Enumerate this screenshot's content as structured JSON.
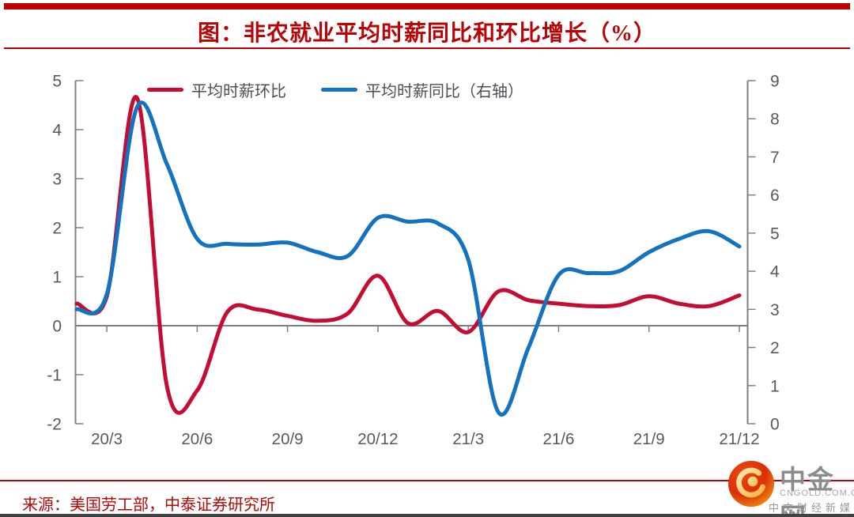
{
  "title": "图：非农就业平均时薪同比和环比增长（%）",
  "source": "来源：美国劳工部，中泰证券研究所",
  "watermark": {
    "brand": "中金网",
    "domain": "CNGOLD.COM.CN",
    "tagline": "中文财经新媒体"
  },
  "colors": {
    "accent_red": "#C00000",
    "axis_line": "#7F7F7F",
    "axis_label": "#595959"
  },
  "chart_data": {
    "type": "line",
    "title": "图：非农就业平均时薪同比和环比增长（%）",
    "categories": [
      "20/2",
      "20/3",
      "20/4",
      "20/5",
      "20/6",
      "20/7",
      "20/8",
      "20/9",
      "20/10",
      "20/11",
      "20/12",
      "21/1",
      "21/2",
      "21/3",
      "21/4",
      "21/5",
      "21/6",
      "21/7",
      "21/8",
      "21/9",
      "21/10",
      "21/11",
      "21/12"
    ],
    "x_tick_labels": [
      "20/3",
      "20/6",
      "20/9",
      "20/12",
      "21/3",
      "21/6",
      "21/9",
      "21/12"
    ],
    "series": [
      {
        "name": "平均时薪环比",
        "axis": "left",
        "color": "#C40D33",
        "values": [
          0.45,
          0.6,
          4.65,
          -1.25,
          -1.32,
          0.28,
          0.33,
          0.2,
          0.1,
          0.25,
          1.02,
          0.05,
          0.3,
          -0.13,
          0.7,
          0.52,
          0.45,
          0.4,
          0.42,
          0.6,
          0.45,
          0.4,
          0.62
        ]
      },
      {
        "name": "平均时薪同比（右轴）",
        "axis": "right",
        "color": "#1473BE",
        "values": [
          3.0,
          3.4,
          8.3,
          6.8,
          4.85,
          4.72,
          4.7,
          4.75,
          4.5,
          4.4,
          5.4,
          5.3,
          5.25,
          4.3,
          0.3,
          2.0,
          3.9,
          3.95,
          4.0,
          4.5,
          4.85,
          5.05,
          4.65
        ]
      }
    ],
    "left_axis": {
      "min": -2,
      "max": 5,
      "ticks": [
        5,
        4,
        3,
        2,
        1,
        0,
        -1,
        -2
      ]
    },
    "right_axis": {
      "min": 0,
      "max": 9,
      "ticks": [
        9,
        8,
        7,
        6,
        5,
        4,
        3,
        2,
        1,
        0
      ]
    },
    "grid": "zero-line-only",
    "legend_position": "top"
  }
}
